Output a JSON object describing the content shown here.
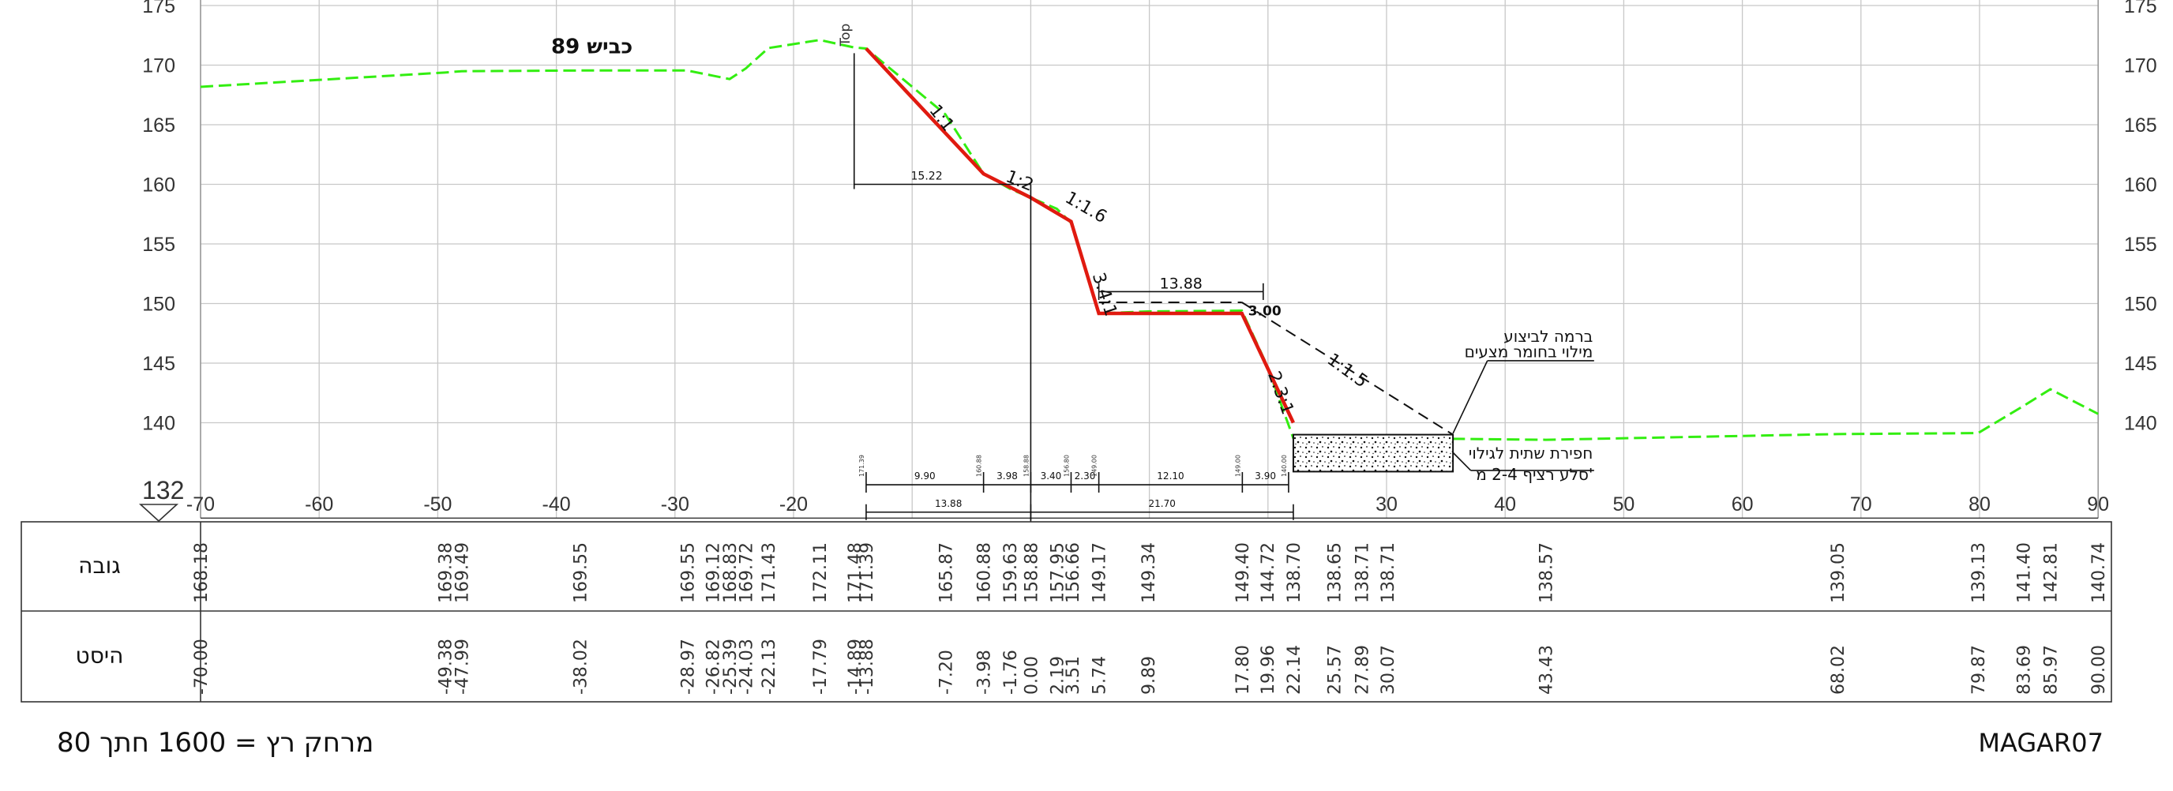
{
  "header": {
    "road_label": "כביש 89",
    "top_label": "Top"
  },
  "axes": {
    "x_ticks": [
      -70,
      -60,
      -50,
      -40,
      -30,
      -20,
      -10,
      0,
      10,
      20,
      30,
      40,
      50,
      60,
      70,
      80,
      90
    ],
    "x_tick_labels_shown": [
      -70,
      -60,
      -50,
      -40,
      -30,
      -20,
      30,
      40,
      50,
      60,
      70,
      80,
      90
    ],
    "y_ticks": [
      140,
      145,
      150,
      155,
      160,
      165,
      170,
      175
    ],
    "datum_label": "132"
  },
  "ground_profile": {
    "color": "#33ee11",
    "points": [
      [
        -70,
        168.18
      ],
      [
        -49.38,
        169.38
      ],
      [
        -47.99,
        169.49
      ],
      [
        -38.02,
        169.55
      ],
      [
        -28.97,
        169.55
      ],
      [
        -26.82,
        169.12
      ],
      [
        -25.39,
        168.83
      ],
      [
        -24.03,
        169.72
      ],
      [
        -22.13,
        171.43
      ],
      [
        -17.79,
        172.11
      ],
      [
        -14.89,
        171.48
      ],
      [
        -13.88,
        171.39
      ],
      [
        -7.2,
        165.87
      ],
      [
        -3.98,
        160.88
      ],
      [
        -1.76,
        159.63
      ],
      [
        0,
        158.88
      ],
      [
        2.19,
        157.95
      ],
      [
        3.51,
        156.66
      ],
      [
        5.74,
        149.17
      ],
      [
        9.89,
        149.34
      ],
      [
        17.8,
        149.4
      ],
      [
        19.96,
        144.72
      ],
      [
        22.14,
        138.7
      ],
      [
        25.57,
        138.65
      ],
      [
        27.89,
        138.71
      ],
      [
        30.07,
        138.71
      ],
      [
        43.43,
        138.57
      ],
      [
        68.02,
        139.05
      ],
      [
        79.87,
        139.13
      ],
      [
        83.69,
        141.4
      ],
      [
        85.97,
        142.81
      ],
      [
        90,
        140.74
      ]
    ]
  },
  "design_profile": {
    "color": "#e01a10",
    "points": [
      [
        -13.88,
        171.39
      ],
      [
        -3.98,
        160.88
      ],
      [
        0,
        158.88
      ],
      [
        3.4,
        156.88
      ],
      [
        5.74,
        149.17
      ],
      [
        17.8,
        149.17
      ],
      [
        22.14,
        140.0
      ]
    ]
  },
  "slopes": [
    "1:1",
    "1:2",
    "1:1.6",
    "3.4:1",
    "2.3:1",
    "1:1.5"
  ],
  "dimensions": {
    "offset_15_22": "15.22",
    "bench_13_88": "13.88",
    "bench_3_00": "3.00",
    "bottom_13_88": "13.88",
    "bottom_21_70": "21.70",
    "segments": [
      "9.90",
      "3.98",
      "3.40",
      "2.30",
      "12.10",
      "3.90"
    ],
    "segment_elevations": [
      "171.39",
      "160.88",
      "158.88",
      "156.80",
      "149.00",
      "149.00",
      "140.00"
    ]
  },
  "callouts": {
    "berm_line1": "ברמה לביצוע",
    "berm_line2": "מילוי בחומר מצעים",
    "trench_line1": "חפירת שתית לגילוי",
    "trench_line2": "סלע רציף 2-4 מ'"
  },
  "table": {
    "row_elevation_label": "גובה",
    "row_distance_label": "היסט",
    "columns": [
      {
        "x": -70,
        "elev": "168.18",
        "dist": "-70.00"
      },
      {
        "x": -49.38,
        "elev": "169.38",
        "dist": "-49.38"
      },
      {
        "x": -47.99,
        "elev": "169.49",
        "dist": "-47.99"
      },
      {
        "x": -38.02,
        "elev": "169.55",
        "dist": "-38.02"
      },
      {
        "x": -28.97,
        "elev": "169.55",
        "dist": "-28.97"
      },
      {
        "x": -26.82,
        "elev": "169.12",
        "dist": "-26.82"
      },
      {
        "x": -25.39,
        "elev": "168.83",
        "dist": "-25.39"
      },
      {
        "x": -24.03,
        "elev": "169.72",
        "dist": "-24.03"
      },
      {
        "x": -22.13,
        "elev": "171.43",
        "dist": "-22.13"
      },
      {
        "x": -17.79,
        "elev": "172.11",
        "dist": "-17.79"
      },
      {
        "x": -14.89,
        "elev": "171.48",
        "dist": "-14.89"
      },
      {
        "x": -13.88,
        "elev": "171.39",
        "dist": "-13.88"
      },
      {
        "x": -7.2,
        "elev": "165.87",
        "dist": "-7.20"
      },
      {
        "x": -3.98,
        "elev": "160.88",
        "dist": "-3.98"
      },
      {
        "x": -1.76,
        "elev": "159.63",
        "dist": "-1.76"
      },
      {
        "x": 0,
        "elev": "158.88",
        "dist": "0.00"
      },
      {
        "x": 2.19,
        "elev": "157.95",
        "dist": "2.19"
      },
      {
        "x": 3.51,
        "elev": "156.66",
        "dist": "3.51"
      },
      {
        "x": 5.74,
        "elev": "149.17",
        "dist": "5.74"
      },
      {
        "x": 9.89,
        "elev": "149.34",
        "dist": "9.89"
      },
      {
        "x": 17.8,
        "elev": "149.40",
        "dist": "17.80"
      },
      {
        "x": 19.96,
        "elev": "144.72",
        "dist": "19.96"
      },
      {
        "x": 22.14,
        "elev": "138.70",
        "dist": "22.14"
      },
      {
        "x": 25.57,
        "elev": "138.65",
        "dist": "25.57"
      },
      {
        "x": 27.89,
        "elev": "138.71",
        "dist": "27.89"
      },
      {
        "x": 30.07,
        "elev": "138.71",
        "dist": "30.07"
      },
      {
        "x": 43.43,
        "elev": "138.57",
        "dist": "43.43"
      },
      {
        "x": 68.02,
        "elev": "139.05",
        "dist": "68.02"
      },
      {
        "x": 79.87,
        "elev": "139.13",
        "dist": "79.87"
      },
      {
        "x": 83.69,
        "elev": "141.40",
        "dist": "83.69"
      },
      {
        "x": 85.97,
        "elev": "142.81",
        "dist": "85.97"
      },
      {
        "x": 90,
        "elev": "140.74",
        "dist": "90.00"
      }
    ]
  },
  "footer": {
    "scale_text": "מרחק רץ = 1600   חתך 80",
    "drawing_id": "MAGAR07"
  }
}
